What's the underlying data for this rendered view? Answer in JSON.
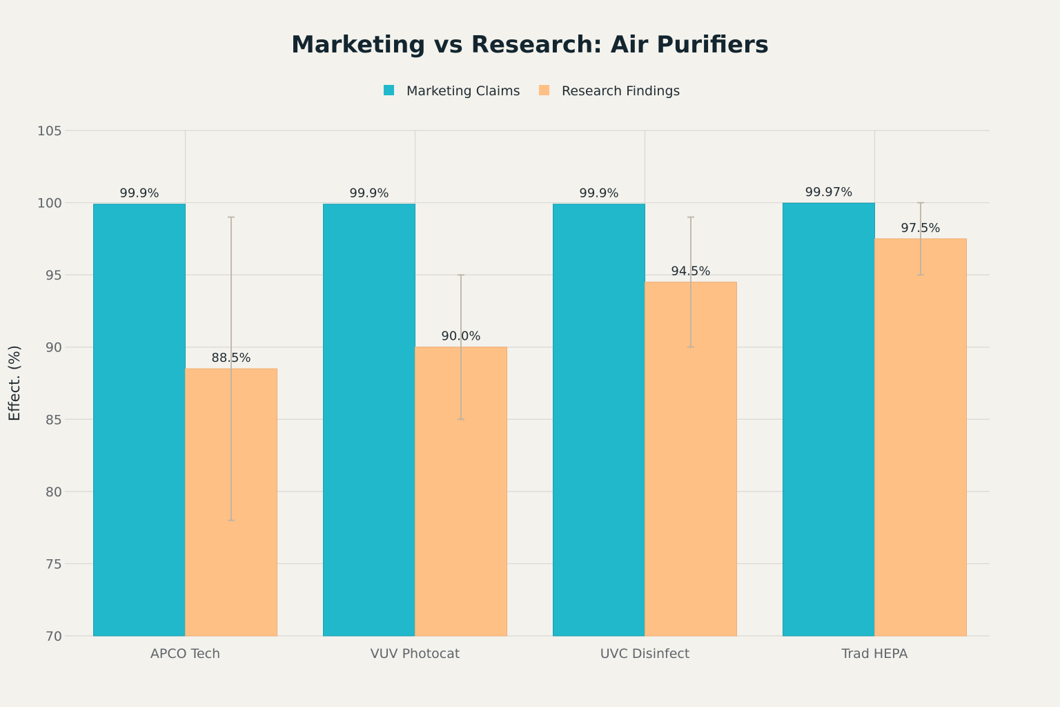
{
  "chart_data": {
    "type": "bar",
    "title": "Marketing vs Research: Air Purifiers",
    "xlabel": "",
    "ylabel": "Effect. (%)",
    "ylim": [
      70,
      105
    ],
    "yticks": [
      70,
      75,
      80,
      85,
      90,
      95,
      100,
      105
    ],
    "grid": true,
    "legend_position": "top-center",
    "categories": [
      "APCO Tech",
      "VUV Photocat",
      "UVC Disinfect",
      "Trad HEPA"
    ],
    "series": [
      {
        "name": "Marketing Claims",
        "color": "#21b8cc",
        "values": [
          99.9,
          99.9,
          99.9,
          99.97
        ],
        "labels": [
          "99.9%",
          "99.9%",
          "99.9%",
          "99.97%"
        ]
      },
      {
        "name": "Research Findings",
        "color": "#ffc085",
        "values": [
          88.5,
          90.0,
          94.5,
          97.5
        ],
        "labels": [
          "88.5%",
          "90.0%",
          "94.5%",
          "97.5%"
        ],
        "error_low": [
          78,
          85,
          90,
          95
        ],
        "error_high": [
          99,
          95,
          99,
          100
        ]
      }
    ]
  }
}
